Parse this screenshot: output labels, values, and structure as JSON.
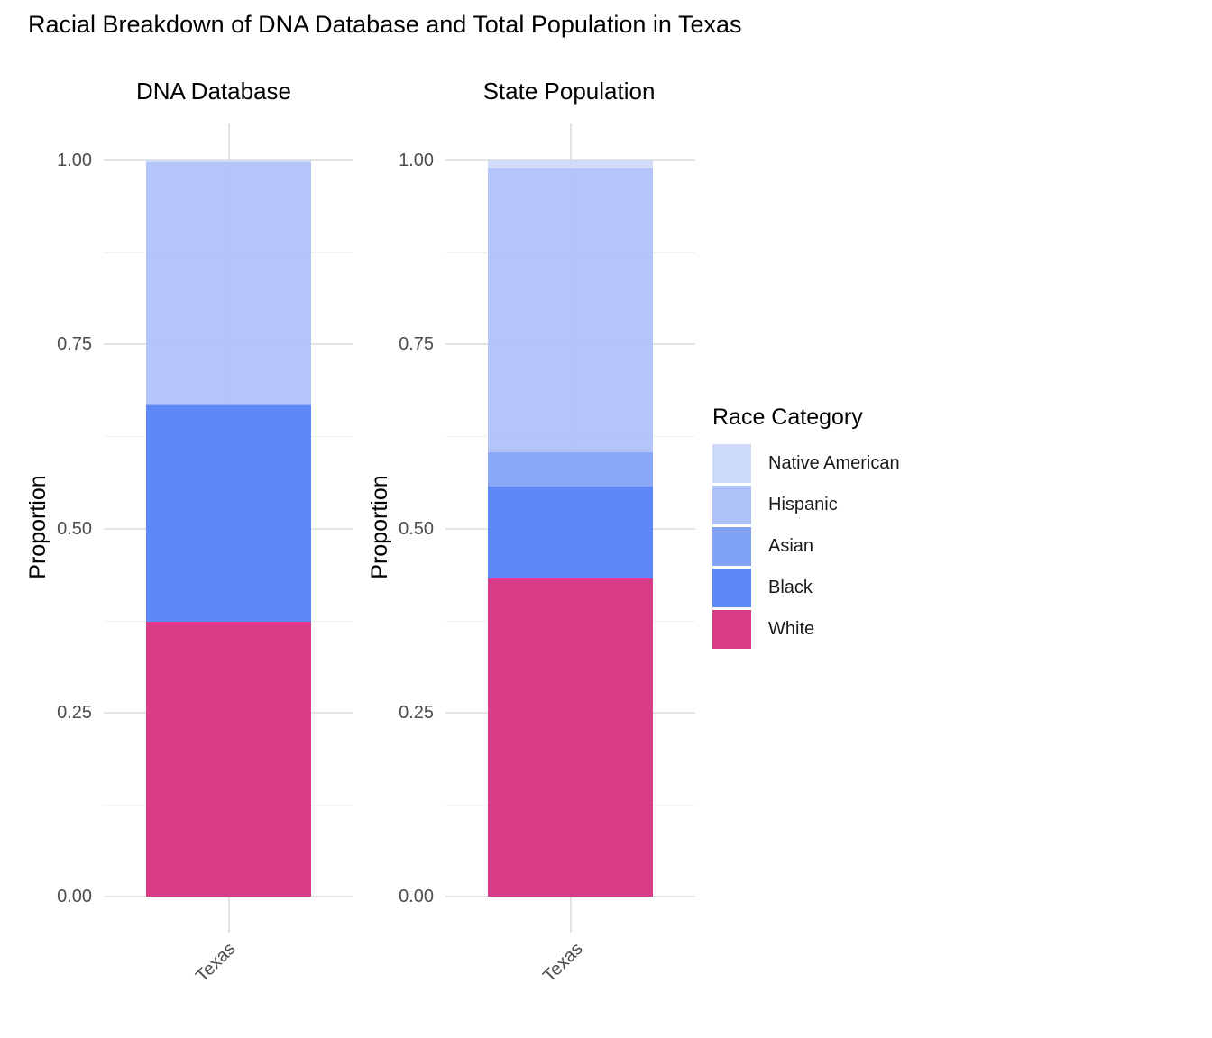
{
  "chart_data": {
    "type": "bar",
    "subtype": "stacked-normalized",
    "title": "Racial Breakdown of DNA Database and Total Population in Texas",
    "ylabel": "Proportion",
    "ylim": [
      0,
      1
    ],
    "ytick_labels": [
      "1.00",
      "0.75",
      "0.50",
      "0.25",
      "0.00"
    ],
    "ytick_values": [
      1.0,
      0.75,
      0.5,
      0.25,
      0.0
    ],
    "minor_grid_values": [
      0.875,
      0.625,
      0.375,
      0.125
    ],
    "grid": "on",
    "legend_position": "right",
    "xtick_label": "Texas",
    "stack_order_top_to_bottom": [
      "Native American",
      "Hispanic",
      "Asian",
      "Black",
      "White"
    ],
    "facets": [
      {
        "title": "DNA Database",
        "x": "Texas",
        "values": {
          "Native American": 0.002,
          "Hispanic": 0.328,
          "Asian": 0.003,
          "Black": 0.294,
          "White": 0.373
        }
      },
      {
        "title": "State Population",
        "x": "Texas",
        "values": {
          "Native American": 0.011,
          "Hispanic": 0.386,
          "Asian": 0.046,
          "Black": 0.125,
          "White": 0.432
        }
      }
    ],
    "legend": {
      "title": "Race Category",
      "entries": [
        {
          "label": "Native American",
          "color": "#cdd9f8"
        },
        {
          "label": "Hispanic",
          "color": "#aec2f9"
        },
        {
          "label": "Asian",
          "color": "#80a3f6"
        },
        {
          "label": "Black",
          "color": "#5e88f8"
        },
        {
          "label": "White",
          "color": "#d93c86"
        }
      ]
    },
    "colors": {
      "grid_major": "#e3e3e3",
      "grid_minor": "#f0f0f0",
      "axis_text": "#4d4d4d"
    }
  }
}
